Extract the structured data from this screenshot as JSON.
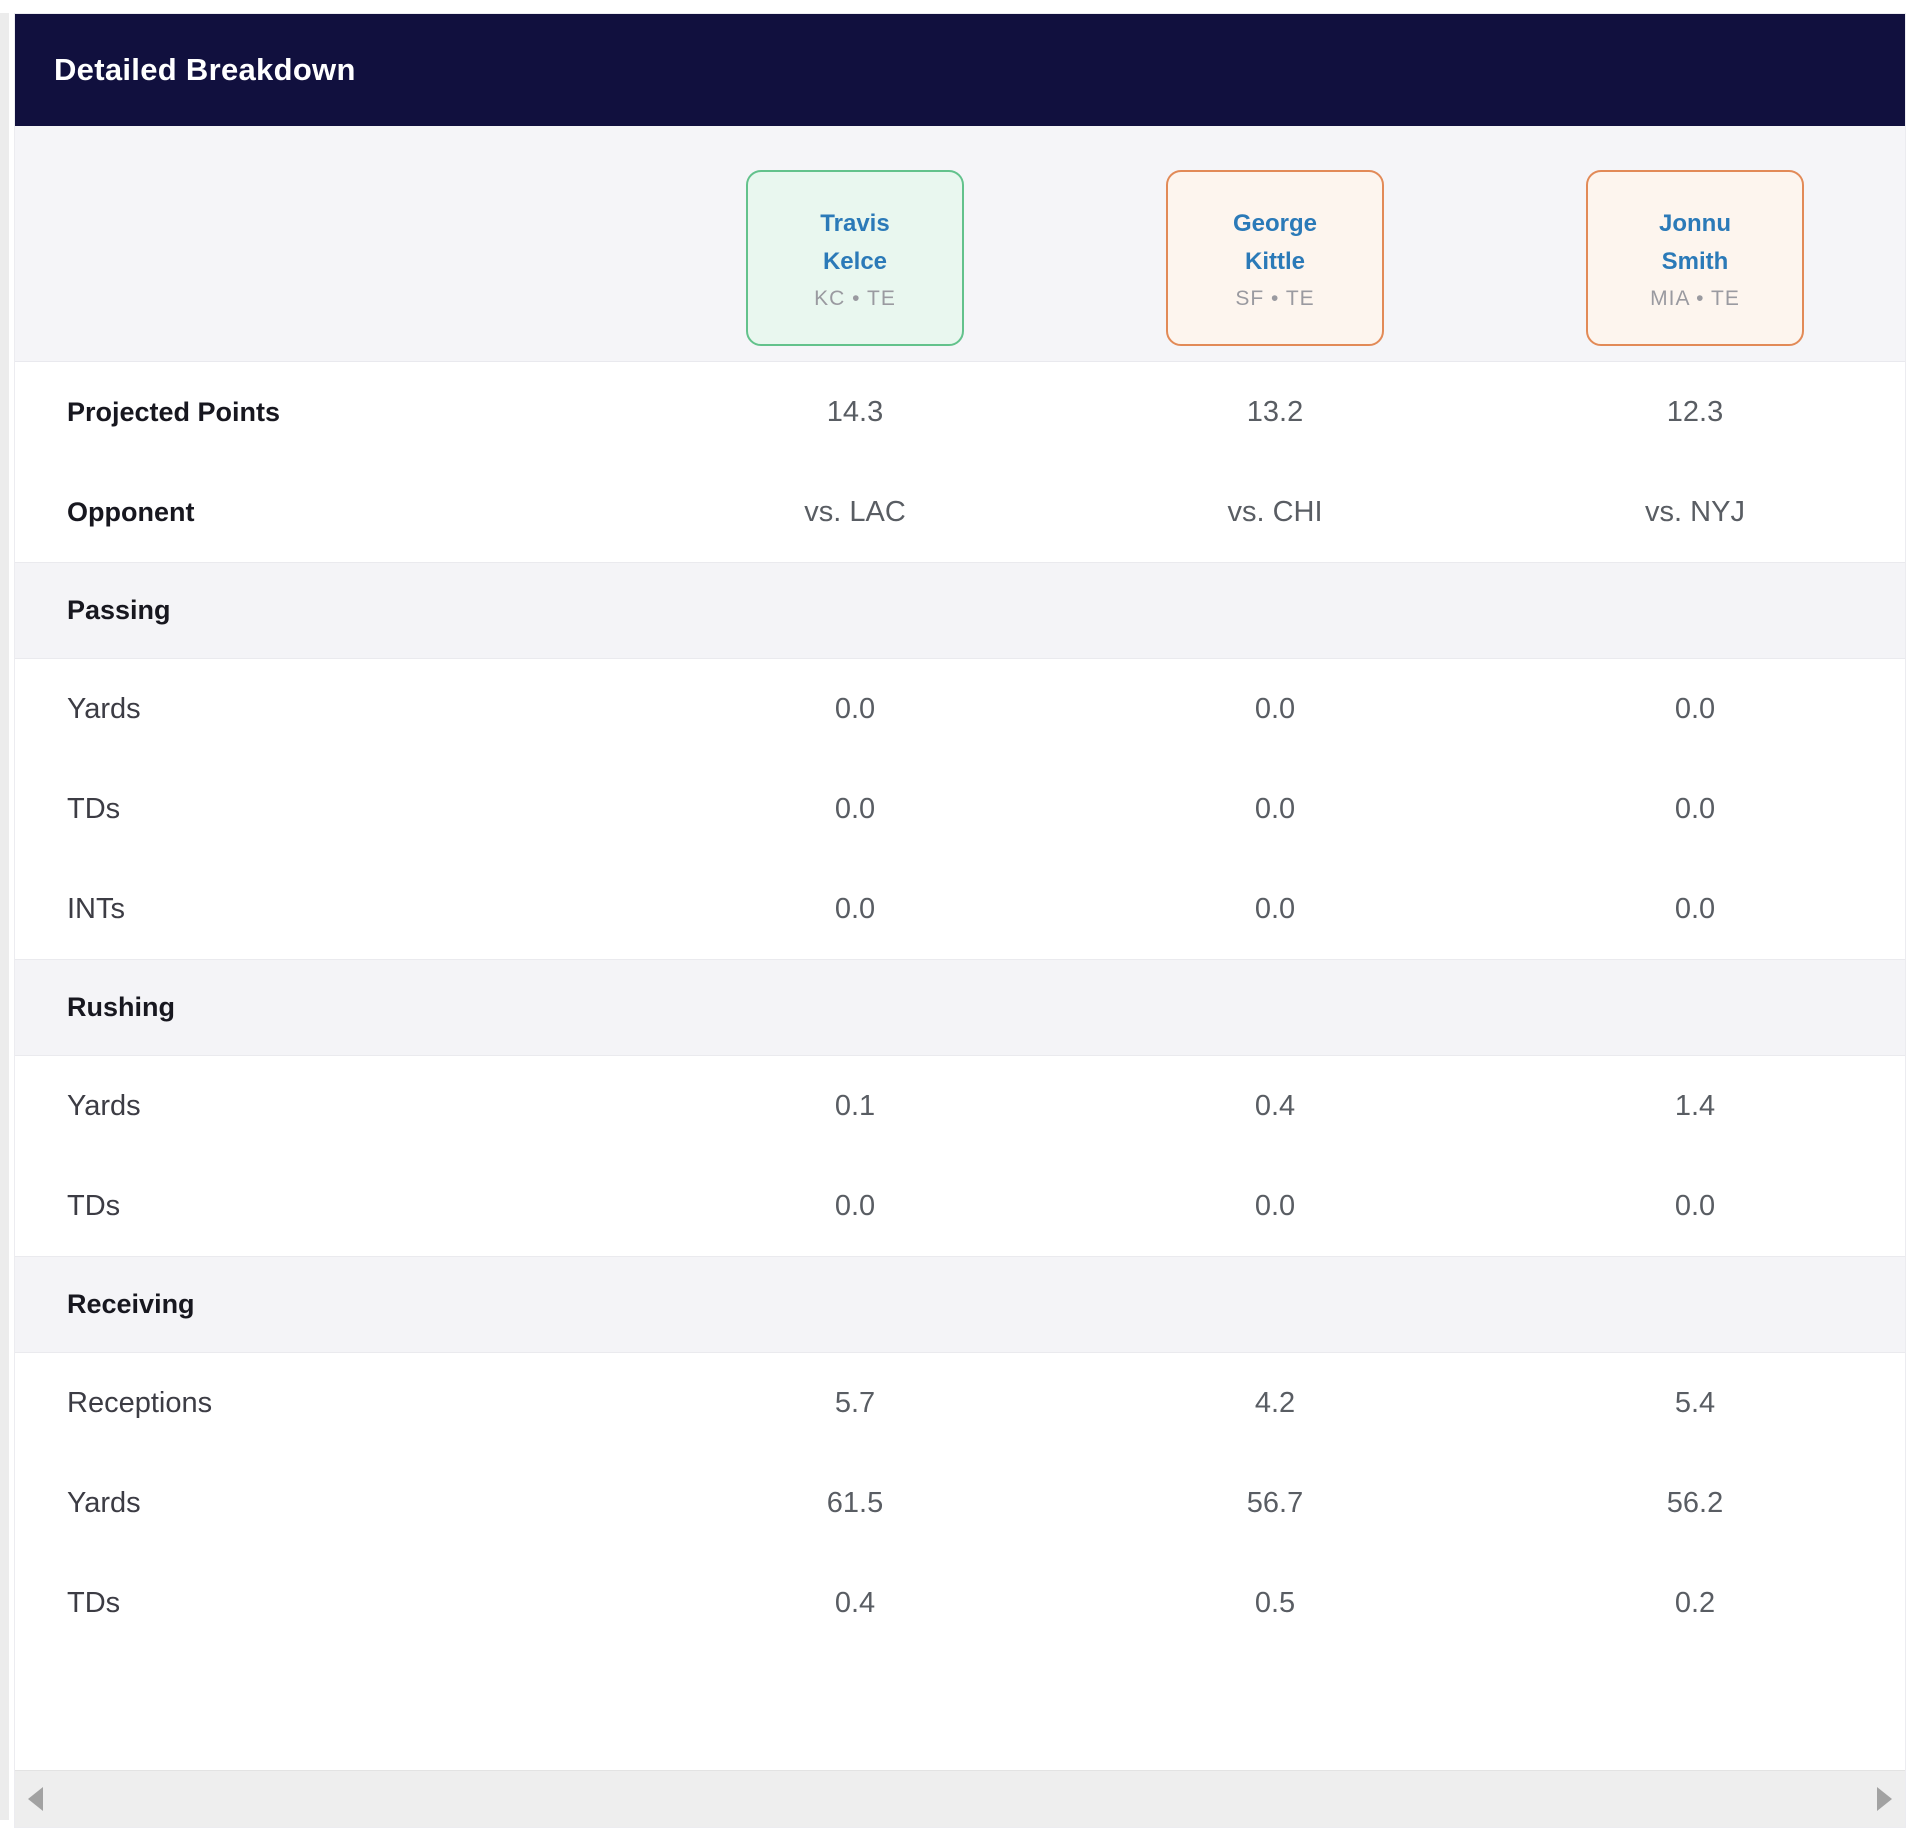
{
  "panel": {
    "title": "Detailed Breakdown"
  },
  "players": [
    {
      "first": "Travis",
      "last": "Kelce",
      "team_pos": "KC • TE",
      "accent": "green"
    },
    {
      "first": "George",
      "last": "Kittle",
      "team_pos": "SF • TE",
      "accent": "orange"
    },
    {
      "first": "Jonnu",
      "last": "Smith",
      "team_pos": "MIA • TE",
      "accent": "orange"
    }
  ],
  "rows": [
    {
      "type": "stat-bold",
      "label": "Projected Points",
      "values": [
        "14.3",
        "13.2",
        "12.3"
      ]
    },
    {
      "type": "stat-bold",
      "label": "Opponent",
      "values": [
        "vs. LAC",
        "vs. CHI",
        "vs. NYJ"
      ]
    },
    {
      "type": "section",
      "label": "Passing"
    },
    {
      "type": "stat",
      "label": "Yards",
      "values": [
        "0.0",
        "0.0",
        "0.0"
      ]
    },
    {
      "type": "stat",
      "label": "TDs",
      "values": [
        "0.0",
        "0.0",
        "0.0"
      ]
    },
    {
      "type": "stat",
      "label": "INTs",
      "values": [
        "0.0",
        "0.0",
        "0.0"
      ]
    },
    {
      "type": "section",
      "label": "Rushing"
    },
    {
      "type": "stat",
      "label": "Yards",
      "values": [
        "0.1",
        "0.4",
        "1.4"
      ]
    },
    {
      "type": "stat",
      "label": "TDs",
      "values": [
        "0.0",
        "0.0",
        "0.0"
      ]
    },
    {
      "type": "section",
      "label": "Receiving"
    },
    {
      "type": "stat",
      "label": "Receptions",
      "values": [
        "5.7",
        "4.2",
        "5.4"
      ]
    },
    {
      "type": "stat",
      "label": "Yards",
      "values": [
        "61.5",
        "56.7",
        "56.2"
      ]
    },
    {
      "type": "stat",
      "label": "TDs",
      "values": [
        "0.4",
        "0.5",
        "0.2"
      ]
    }
  ],
  "colors": {
    "header_bg": "#11103e",
    "highlight_green_border": "#63c28c",
    "highlight_green_bg": "#e9f7ef",
    "highlight_orange_border": "#e28a57",
    "highlight_orange_bg": "#fdf5ee",
    "player_name_blue": "#2b7ab8",
    "section_band_bg": "#f4f4f7"
  },
  "scrollbar": {
    "left_arrow_icon": "scrollbar-left-arrow",
    "right_arrow_icon": "scrollbar-right-arrow"
  }
}
